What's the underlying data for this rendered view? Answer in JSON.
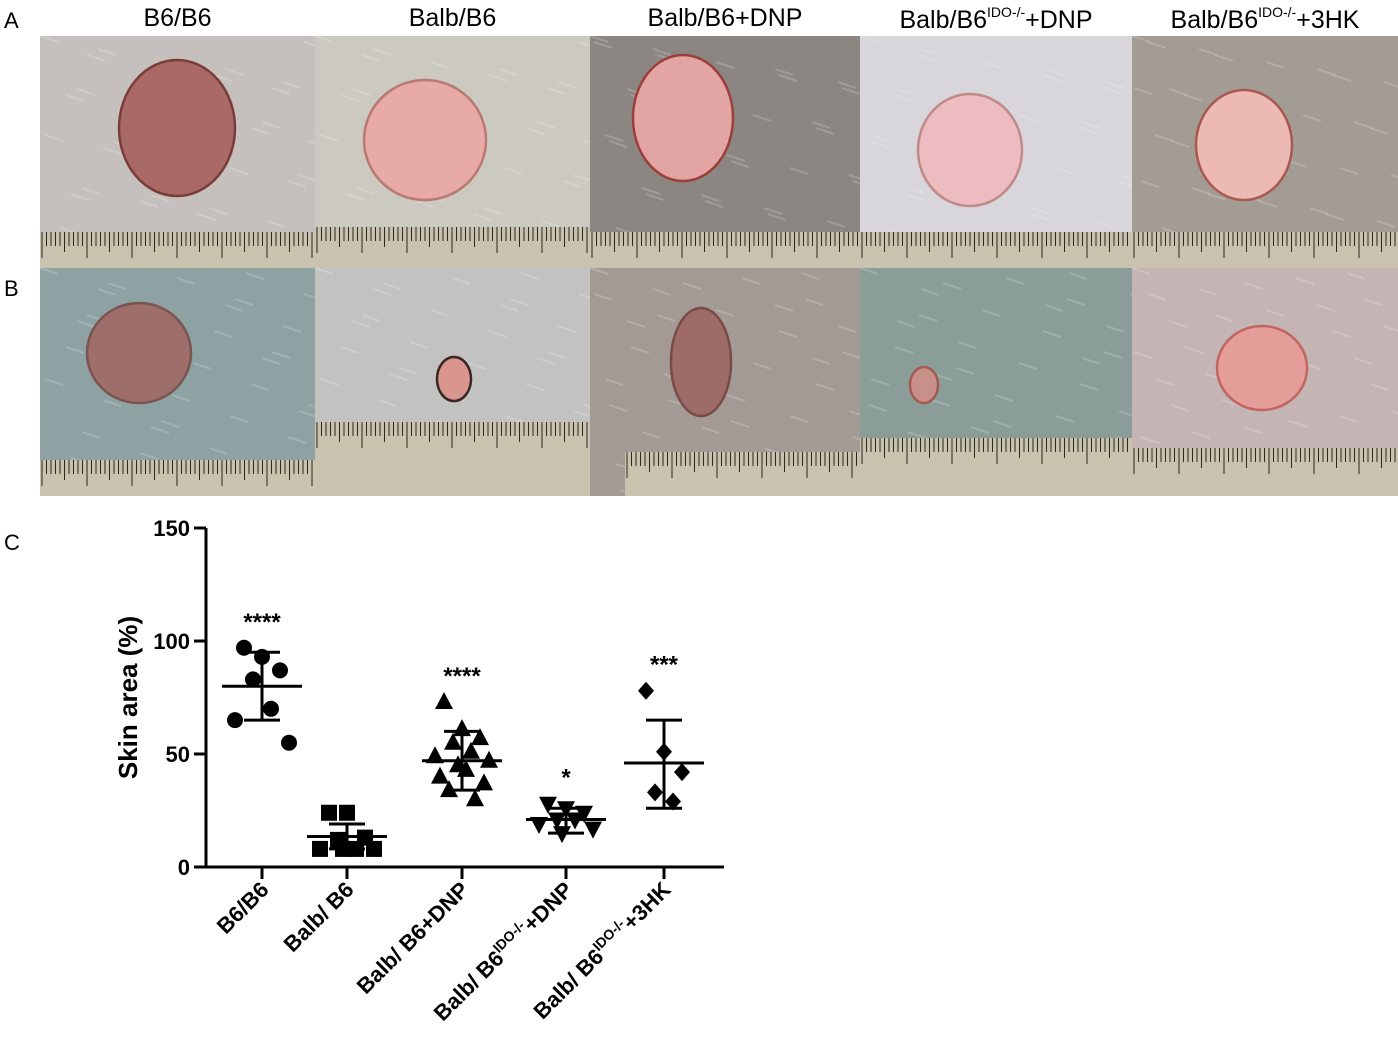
{
  "panel_labels": {
    "a": "A",
    "b": "B",
    "c": "C"
  },
  "columns": [
    {
      "title": "B6/B6",
      "sup": "",
      "suffix": ""
    },
    {
      "title": "Balb/B6",
      "sup": "",
      "suffix": ""
    },
    {
      "title": "Balb/B6+DNP",
      "sup": "",
      "suffix": ""
    },
    {
      "title": "Balb/B6",
      "sup": "IDO-/-",
      "suffix": "+DNP"
    },
    {
      "title": "Balb/B6",
      "sup": "IDO-/-",
      "suffix": "+3HK"
    }
  ],
  "photos": {
    "row_a": [
      {
        "skin": "#c5c0bd",
        "wound": "#a96a66",
        "wound_edge": "#7a3c38"
      },
      {
        "skin": "#ccc9c1",
        "wound": "#e8aaa7",
        "wound_edge": "#b87a70"
      },
      {
        "skin": "#8c8682",
        "wound": "#e2a5a3",
        "wound_edge": "#9c3f3a"
      },
      {
        "skin": "#d8d5db",
        "wound": "#edbcc0",
        "wound_edge": "#c08a88"
      },
      {
        "skin": "#a29c94",
        "wound": "#ecbab3",
        "wound_edge": "#a8584e"
      }
    ],
    "row_b": [
      {
        "skin": "#8ea2a3",
        "wound": "#9e6e6a",
        "wound_edge": "#7a5450"
      },
      {
        "skin": "#c2c3c1",
        "wound": "#d9968e",
        "wound_edge": "#3a2622"
      },
      {
        "skin": "#a39a95",
        "wound": "#9e6c68",
        "wound_edge": "#7a4a44"
      },
      {
        "skin": "#8a9d98",
        "wound": "#c9908a",
        "wound_edge": "#a05c50"
      },
      {
        "skin": "#c4b5b4",
        "wound": "#e59d9a",
        "wound_edge": "#c06660"
      }
    ]
  },
  "chart_data": {
    "type": "scatter",
    "ylabel": "Skin area  (%)",
    "ylim": [
      0,
      150
    ],
    "yticks": [
      0,
      50,
      100,
      150
    ],
    "categories": [
      {
        "label": "B6/B6",
        "sup": "",
        "suffix": ""
      },
      {
        "label": "Balb/ B6",
        "sup": "",
        "suffix": ""
      },
      {
        "label": "Balb/ B6+DNP",
        "sup": "",
        "suffix": ""
      },
      {
        "label": "Balb/ B6",
        "sup": "IDO-/-",
        "suffix": "+DNP"
      },
      {
        "label": "Balb/ B6",
        "sup": "IDO-/-",
        "suffix": "+3HK"
      }
    ],
    "series": [
      {
        "marker": "circle",
        "points": [
          97,
          93,
          87,
          83,
          70,
          65,
          55
        ],
        "mean": 80,
        "sd_low": 65,
        "sd_high": 95,
        "significance": "****"
      },
      {
        "marker": "square",
        "points": [
          24,
          24,
          13,
          12,
          8,
          8,
          8,
          8
        ],
        "mean": 13.5,
        "sd_low": 8,
        "sd_high": 19,
        "significance": ""
      },
      {
        "marker": "triangle-up",
        "points": [
          73,
          61,
          57,
          55,
          51,
          49,
          47,
          45,
          43,
          40,
          37,
          34,
          30
        ],
        "mean": 47,
        "sd_low": 34,
        "sd_high": 60,
        "significance": "****"
      },
      {
        "marker": "triangle-down",
        "points": [
          28,
          26,
          24,
          21,
          21,
          19,
          17,
          15
        ],
        "mean": 21,
        "sd_low": 15,
        "sd_high": 26,
        "significance": "*"
      },
      {
        "marker": "diamond",
        "points": [
          78,
          51,
          42,
          33,
          29
        ],
        "mean": 46,
        "sd_low": 26,
        "sd_high": 65,
        "significance": "***"
      }
    ]
  }
}
